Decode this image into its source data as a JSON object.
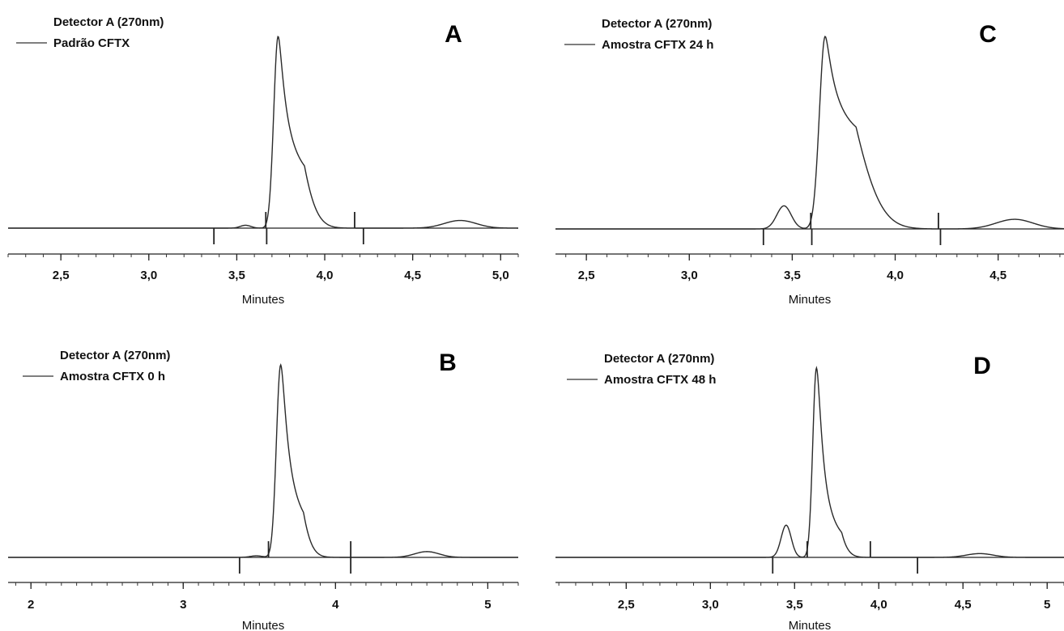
{
  "chart_data": [
    {
      "type": "line",
      "panel": "A",
      "detector": "Detector A (270nm)",
      "series": [
        {
          "name": "Padrão CFTX",
          "peaks": [
            {
              "center": 3.55,
              "height": 1.5,
              "sigma": 0.03
            },
            {
              "center": 3.735,
              "height": 100,
              "sigma": 0.025,
              "tail": 0.05
            },
            {
              "center": 4.77,
              "height": 4,
              "sigma": 0.09
            }
          ]
        }
      ],
      "xlabel": "Minutes",
      "xlim": [
        2.2,
        5.1
      ],
      "ylim": [
        -5,
        108
      ],
      "ticks": [
        2.5,
        3.0,
        3.5,
        4.0,
        4.5,
        5.0
      ],
      "tick_labels": [
        "2,5",
        "3,0",
        "3,5",
        "4,0",
        "4,5",
        "5,0"
      ],
      "minor_step": 0.1,
      "markers": [
        {
          "x": 3.37,
          "dir": "down"
        },
        {
          "x": 3.665,
          "dir": "up"
        },
        {
          "x": 3.67,
          "dir": "down"
        },
        {
          "x": 4.17,
          "dir": "up"
        },
        {
          "x": 4.22,
          "dir": "down"
        }
      ]
    },
    {
      "type": "line",
      "panel": "B",
      "detector": "Detector A (270nm)",
      "series": [
        {
          "name": "Amostra CFTX 0 h",
          "peaks": [
            {
              "center": 3.48,
              "height": 0.8,
              "sigma": 0.04
            },
            {
              "center": 3.64,
              "height": 100,
              "sigma": 0.028,
              "tail": 0.04
            },
            {
              "center": 4.6,
              "height": 3,
              "sigma": 0.08
            }
          ]
        }
      ],
      "xlabel": "Minutes",
      "xlim": [
        1.85,
        5.2
      ],
      "ylim": [
        -5,
        108
      ],
      "ticks": [
        2,
        3,
        4,
        5
      ],
      "tick_labels": [
        "2",
        "3",
        "4",
        "5"
      ],
      "minor_step": 0.1,
      "markers": [
        {
          "x": 3.37,
          "dir": "down"
        },
        {
          "x": 3.56,
          "dir": "up"
        },
        {
          "x": 4.1,
          "dir": "up"
        },
        {
          "x": 4.1,
          "dir": "down"
        }
      ]
    },
    {
      "type": "line",
      "panel": "C",
      "detector": "Detector A (270nm)",
      "series": [
        {
          "name": "Amostra CFTX 24 h",
          "peaks": [
            {
              "center": 3.46,
              "height": 12,
              "sigma": 0.035
            },
            {
              "center": 3.66,
              "height": 100,
              "sigma": 0.028,
              "tail": 0.07
            },
            {
              "center": 4.58,
              "height": 5,
              "sigma": 0.09
            }
          ]
        }
      ],
      "xlabel": "Minutes",
      "xlim": [
        2.35,
        4.82
      ],
      "ylim": [
        -5,
        108
      ],
      "ticks": [
        2.5,
        3.0,
        3.5,
        4.0,
        4.5
      ],
      "tick_labels": [
        "2,5",
        "3,0",
        "3,5",
        "4,0",
        "4,5"
      ],
      "minor_step": 0.1,
      "markers": [
        {
          "x": 3.36,
          "dir": "down"
        },
        {
          "x": 3.59,
          "dir": "up"
        },
        {
          "x": 3.595,
          "dir": "down"
        },
        {
          "x": 4.21,
          "dir": "up"
        },
        {
          "x": 4.22,
          "dir": "down"
        }
      ]
    },
    {
      "type": "line",
      "panel": "D",
      "detector": "Detector A (270nm)",
      "series": [
        {
          "name": "Amostra CFTX 48 h",
          "peaks": [
            {
              "center": 3.45,
              "height": 17,
              "sigma": 0.03
            },
            {
              "center": 3.63,
              "height": 100,
              "sigma": 0.022,
              "tail": 0.035
            },
            {
              "center": 4.6,
              "height": 2,
              "sigma": 0.08
            }
          ]
        }
      ],
      "xlabel": "Minutes",
      "xlim": [
        2.08,
        5.1
      ],
      "ylim": [
        -5,
        108
      ],
      "ticks": [
        2.5,
        3.0,
        3.5,
        4.0,
        4.5,
        5.0
      ],
      "tick_labels": [
        "2,5",
        "3,0",
        "3,5",
        "4,0",
        "4,5",
        "5"
      ],
      "minor_step": 0.1,
      "markers": [
        {
          "x": 3.37,
          "dir": "down"
        },
        {
          "x": 3.575,
          "dir": "up"
        },
        {
          "x": 3.95,
          "dir": "up"
        },
        {
          "x": 4.23,
          "dir": "down"
        }
      ]
    }
  ]
}
